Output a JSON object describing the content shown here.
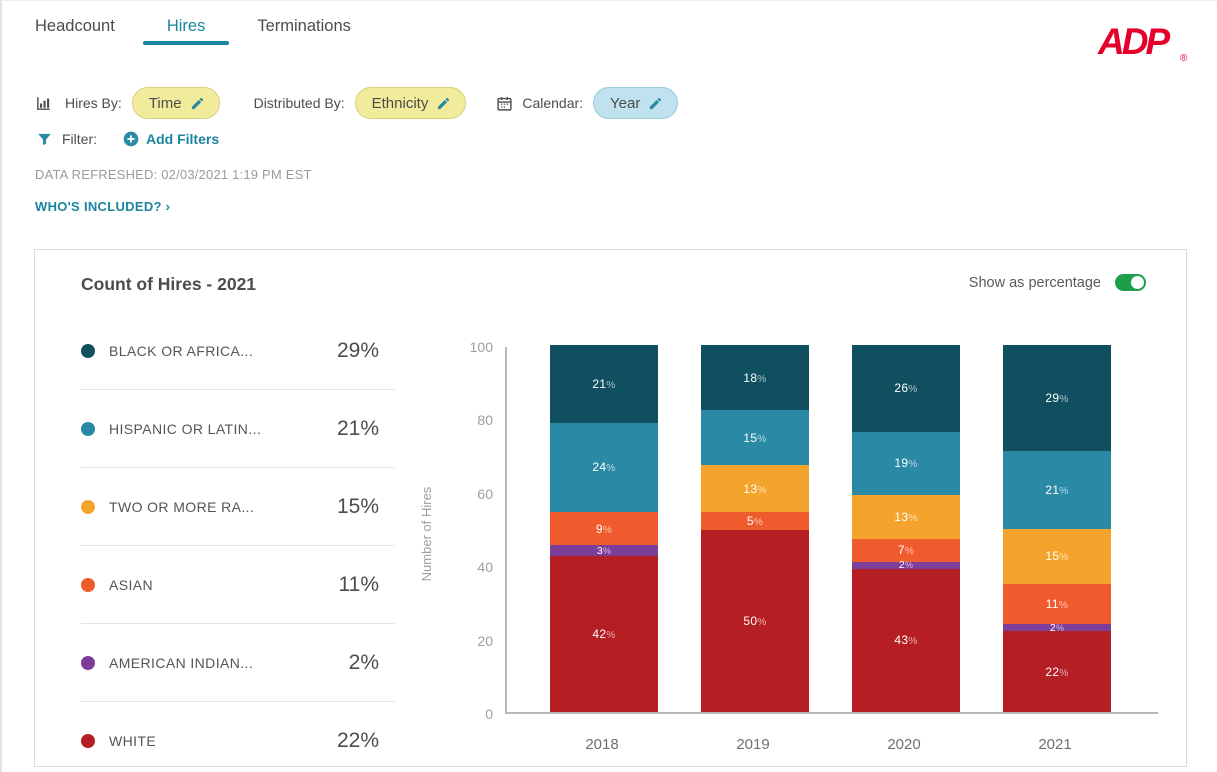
{
  "header": {
    "tabs": [
      {
        "label": "Headcount",
        "active": false
      },
      {
        "label": "Hires",
        "active": true
      },
      {
        "label": "Terminations",
        "active": false
      }
    ],
    "logo_text": "ADP",
    "logo_reg": "®",
    "logo_color": "#e4002b",
    "accent_color": "#1b849e"
  },
  "controls": {
    "hires_by_label": "Hires By:",
    "hires_by_value": "Time",
    "distributed_by_label": "Distributed By:",
    "distributed_by_value": "Ethnicity",
    "calendar_label": "Calendar:",
    "calendar_value": "Year",
    "filter_label": "Filter:",
    "add_filters_label": "Add Filters",
    "pill_yellow_bg": "#f1eb9c",
    "pill_blue_bg": "#c0e1ee"
  },
  "status": {
    "data_refreshed": "DATA REFRESHED: 02/03/2021 1:19 PM EST",
    "whos_included": "WHO'S INCLUDED? ›"
  },
  "card": {
    "title": "Count of Hires - 2021",
    "toggle_label": "Show as percentage",
    "toggle_on": true,
    "toggle_color": "#1d9e4b"
  },
  "chart_data": {
    "type": "bar",
    "stacked": true,
    "title": "Count of Hires - 2021",
    "categories": [
      "2018",
      "2019",
      "2020",
      "2021"
    ],
    "series": [
      {
        "name": "BLACK OR AFRICA...",
        "color": "#0f4f60",
        "values": [
          21,
          18,
          26,
          29
        ],
        "legend_pct": "29%"
      },
      {
        "name": "HISPANIC OR LATIN...",
        "color": "#2a8aa5",
        "values": [
          24,
          15,
          19,
          21
        ],
        "legend_pct": "21%"
      },
      {
        "name": "TWO OR MORE RA...",
        "color": "#f4a42c",
        "values": [
          0,
          13,
          13,
          15
        ],
        "legend_pct": "15%"
      },
      {
        "name": "ASIAN",
        "color": "#ef5b2c",
        "values": [
          9,
          5,
          7,
          11
        ],
        "legend_pct": "11%"
      },
      {
        "name": "AMERICAN INDIAN...",
        "color": "#7c3e98",
        "values": [
          3,
          0,
          2,
          2
        ],
        "legend_pct": "2%"
      },
      {
        "name": "WHITE",
        "color": "#b51e23",
        "values": [
          42,
          50,
          43,
          22
        ],
        "legend_pct": "22%"
      }
    ],
    "value_suffix": "%",
    "ylabel": "Number of Hires",
    "ylim": [
      0,
      100
    ],
    "yticks": [
      0,
      20,
      40,
      60,
      80,
      100
    ],
    "grid": false,
    "legend_position": "left"
  }
}
